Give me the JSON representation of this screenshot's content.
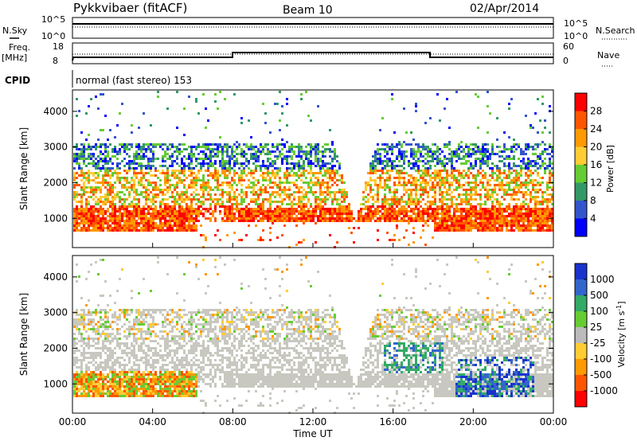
{
  "header": {
    "station": "Pykkvibaer (fitACF)",
    "beam": "Beam 10",
    "date": "02/Apr/2014"
  },
  "status_panel": {
    "nsky_label": "N.Sky",
    "nsearch_label": "N.Search",
    "noise_ticks": [
      "10^5",
      "10^0"
    ],
    "freq_label_1": "Freq.",
    "freq_label_2": "[MHz]",
    "freq_ticks": [
      "18",
      "8"
    ],
    "nave_ticks": [
      "60",
      "0"
    ],
    "nave_label": "Nave",
    "cpid_label": "CPID",
    "cpid_value": "normal (fast stereo) 153"
  },
  "chart_data": [
    {
      "type": "heatmap",
      "title": "Power",
      "ylabel": "Slant Range [km]",
      "xlabel": "Time UT",
      "xlim_hours": [
        0,
        24
      ],
      "ylim": [
        180,
        4600
      ],
      "y_ticks": [
        "1000",
        "2000",
        "3000",
        "4000"
      ],
      "x_ticks": [
        "00:00",
        "04:00",
        "08:00",
        "12:00",
        "16:00",
        "20:00",
        "00:00"
      ],
      "colorbar_label": "Power [dB]",
      "colorbar_ticks": [
        "28",
        "24",
        "20",
        "16",
        "12",
        "8",
        "4"
      ],
      "colorbar_colors": [
        "#ff0000",
        "#ff5500",
        "#ff9900",
        "#ffcc33",
        "#66cc33",
        "#339966",
        "#3355cc",
        "#0000ff"
      ],
      "scatter_band_km": [
        1000,
        3200
      ],
      "strong_echo_band_km": [
        700,
        1300
      ],
      "gap_hours": [
        13.8,
        14.3
      ]
    },
    {
      "type": "heatmap",
      "title": "Velocity",
      "ylabel": "Slant Range [km]",
      "xlabel": "Time UT",
      "xlim_hours": [
        0,
        24
      ],
      "ylim": [
        180,
        4600
      ],
      "y_ticks": [
        "1000",
        "2000",
        "3000",
        "4000"
      ],
      "x_ticks": [
        "00:00",
        "04:00",
        "08:00",
        "12:00",
        "16:00",
        "20:00",
        "00:00"
      ],
      "colorbar_label": "Velocity [m s",
      "colorbar_label_exp": "-1",
      "colorbar_label_close": "]",
      "colorbar_ticks": [
        "1000",
        "500",
        "100",
        "25",
        "-25",
        "-100",
        "-500",
        "-1000"
      ],
      "colorbar_colors": [
        "#1a33cc",
        "#3366cc",
        "#33aa66",
        "#66cc33",
        "#bbbbbb",
        "#ffcc33",
        "#ff9900",
        "#ff5500",
        "#ff0000"
      ],
      "ground_scatter_color": "#c8c8c0"
    }
  ],
  "time_axis": {
    "label": "Time UT",
    "ticks": [
      "00:00",
      "04:00",
      "08:00",
      "12:00",
      "16:00",
      "20:00",
      "00:00"
    ]
  }
}
